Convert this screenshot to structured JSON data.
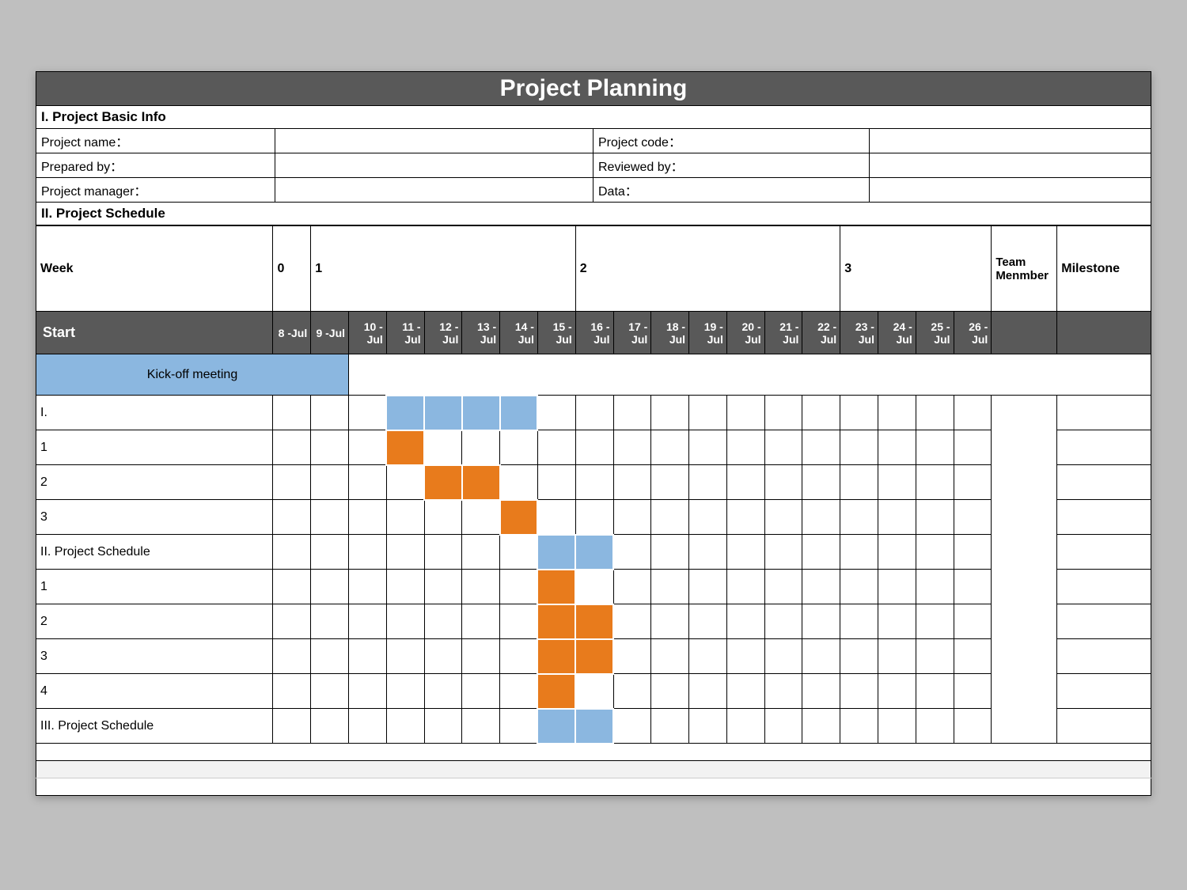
{
  "title": "Project Planning",
  "sections": {
    "info": "I. Project Basic Info",
    "schedule": "II. Project Schedule"
  },
  "info": {
    "r1a": "Project name：",
    "r1b": "Project code：",
    "r2a": "Prepared by：",
    "r2b": "Reviewed by：",
    "r3a": "Project manager：",
    "r3b": "Data："
  },
  "weekHdr": {
    "label": "Week",
    "w0": "0",
    "w1": "1",
    "w2": "2",
    "w3": "3",
    "tm": "Team Menmber",
    "ms": "Milestone"
  },
  "startLabel": "Start",
  "dates": [
    "8 -Jul",
    "9 -Jul",
    "10 -Jul",
    "11 -Jul",
    "12 -Jul",
    "13 -Jul",
    "14 -Jul",
    "15 -Jul",
    "16 -Jul",
    "17 -Jul",
    "18 -Jul",
    "19 -Jul",
    "20 -Jul",
    "21 -Jul",
    "22 -Jul",
    "23 -Jul",
    "24 -Jul",
    "25 -Jul",
    "26 -Jul"
  ],
  "kickoff": "Kick-off meeting",
  "tasks": {
    "t_I": "I.",
    "t1": "1",
    "t2": "2",
    "t3": "3",
    "t_II": "II. Project Schedule",
    "t4": "1",
    "t5": "2",
    "t6": "3",
    "t7": "4",
    "t_III": "III. Project Schedule"
  },
  "colors": {
    "header": "#595959",
    "blue": "#8bb7e0",
    "orange": "#e87b1c"
  },
  "gantt": {
    "I": {
      "color": "blue",
      "cells": [
        3,
        4,
        5,
        6
      ]
    },
    "r1": {
      "color": "orange",
      "cells": [
        3
      ]
    },
    "r2": {
      "color": "orange",
      "cells": [
        4,
        5
      ]
    },
    "r3": {
      "color": "orange",
      "cells": [
        6
      ]
    },
    "II": {
      "color": "blue",
      "cells": [
        7,
        8
      ]
    },
    "r4": {
      "color": "orange",
      "cells": [
        7
      ]
    },
    "r5": {
      "color": "orange",
      "cells": [
        7,
        8
      ]
    },
    "r6": {
      "color": "orange",
      "cells": [
        7,
        8
      ]
    },
    "r7": {
      "color": "orange",
      "cells": [
        7
      ]
    },
    "III": {
      "color": "blue",
      "cells": [
        7,
        8
      ]
    }
  }
}
